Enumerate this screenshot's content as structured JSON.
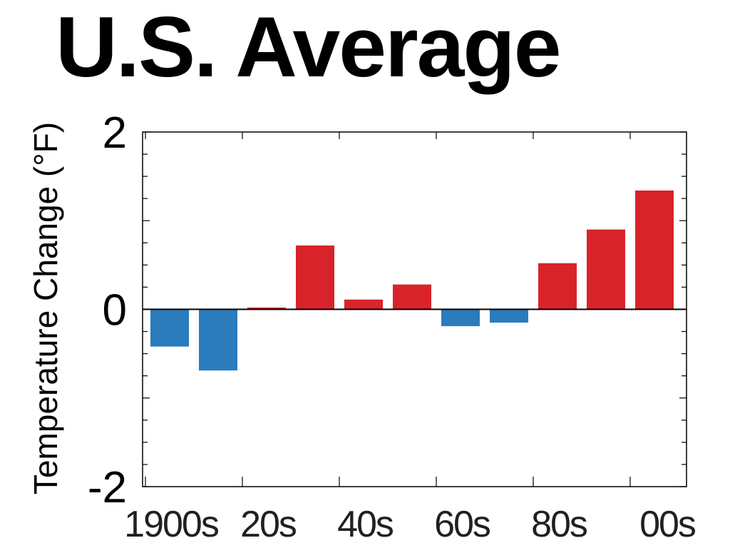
{
  "chart_data": {
    "type": "bar",
    "title": "U.S. Average",
    "xlabel": "",
    "ylabel": "Temperature Change (°F)",
    "ylim": [
      -2,
      2
    ],
    "yticks": [
      "2",
      "0",
      "-2"
    ],
    "categories": [
      "1900s",
      "1910s",
      "1920s",
      "1930s",
      "1940s",
      "1950s",
      "1960s",
      "1970s",
      "1980s",
      "1990s",
      "2000s"
    ],
    "xtick_labels": [
      "1900s",
      "20s",
      "40s",
      "60s",
      "80s",
      "00s"
    ],
    "values": [
      -0.42,
      -0.69,
      0.02,
      0.72,
      0.11,
      0.28,
      -0.19,
      -0.15,
      0.52,
      0.9,
      1.34
    ],
    "grid": false,
    "colors": {
      "positive": "#d9232a",
      "negative": "#2a7cbd"
    }
  }
}
